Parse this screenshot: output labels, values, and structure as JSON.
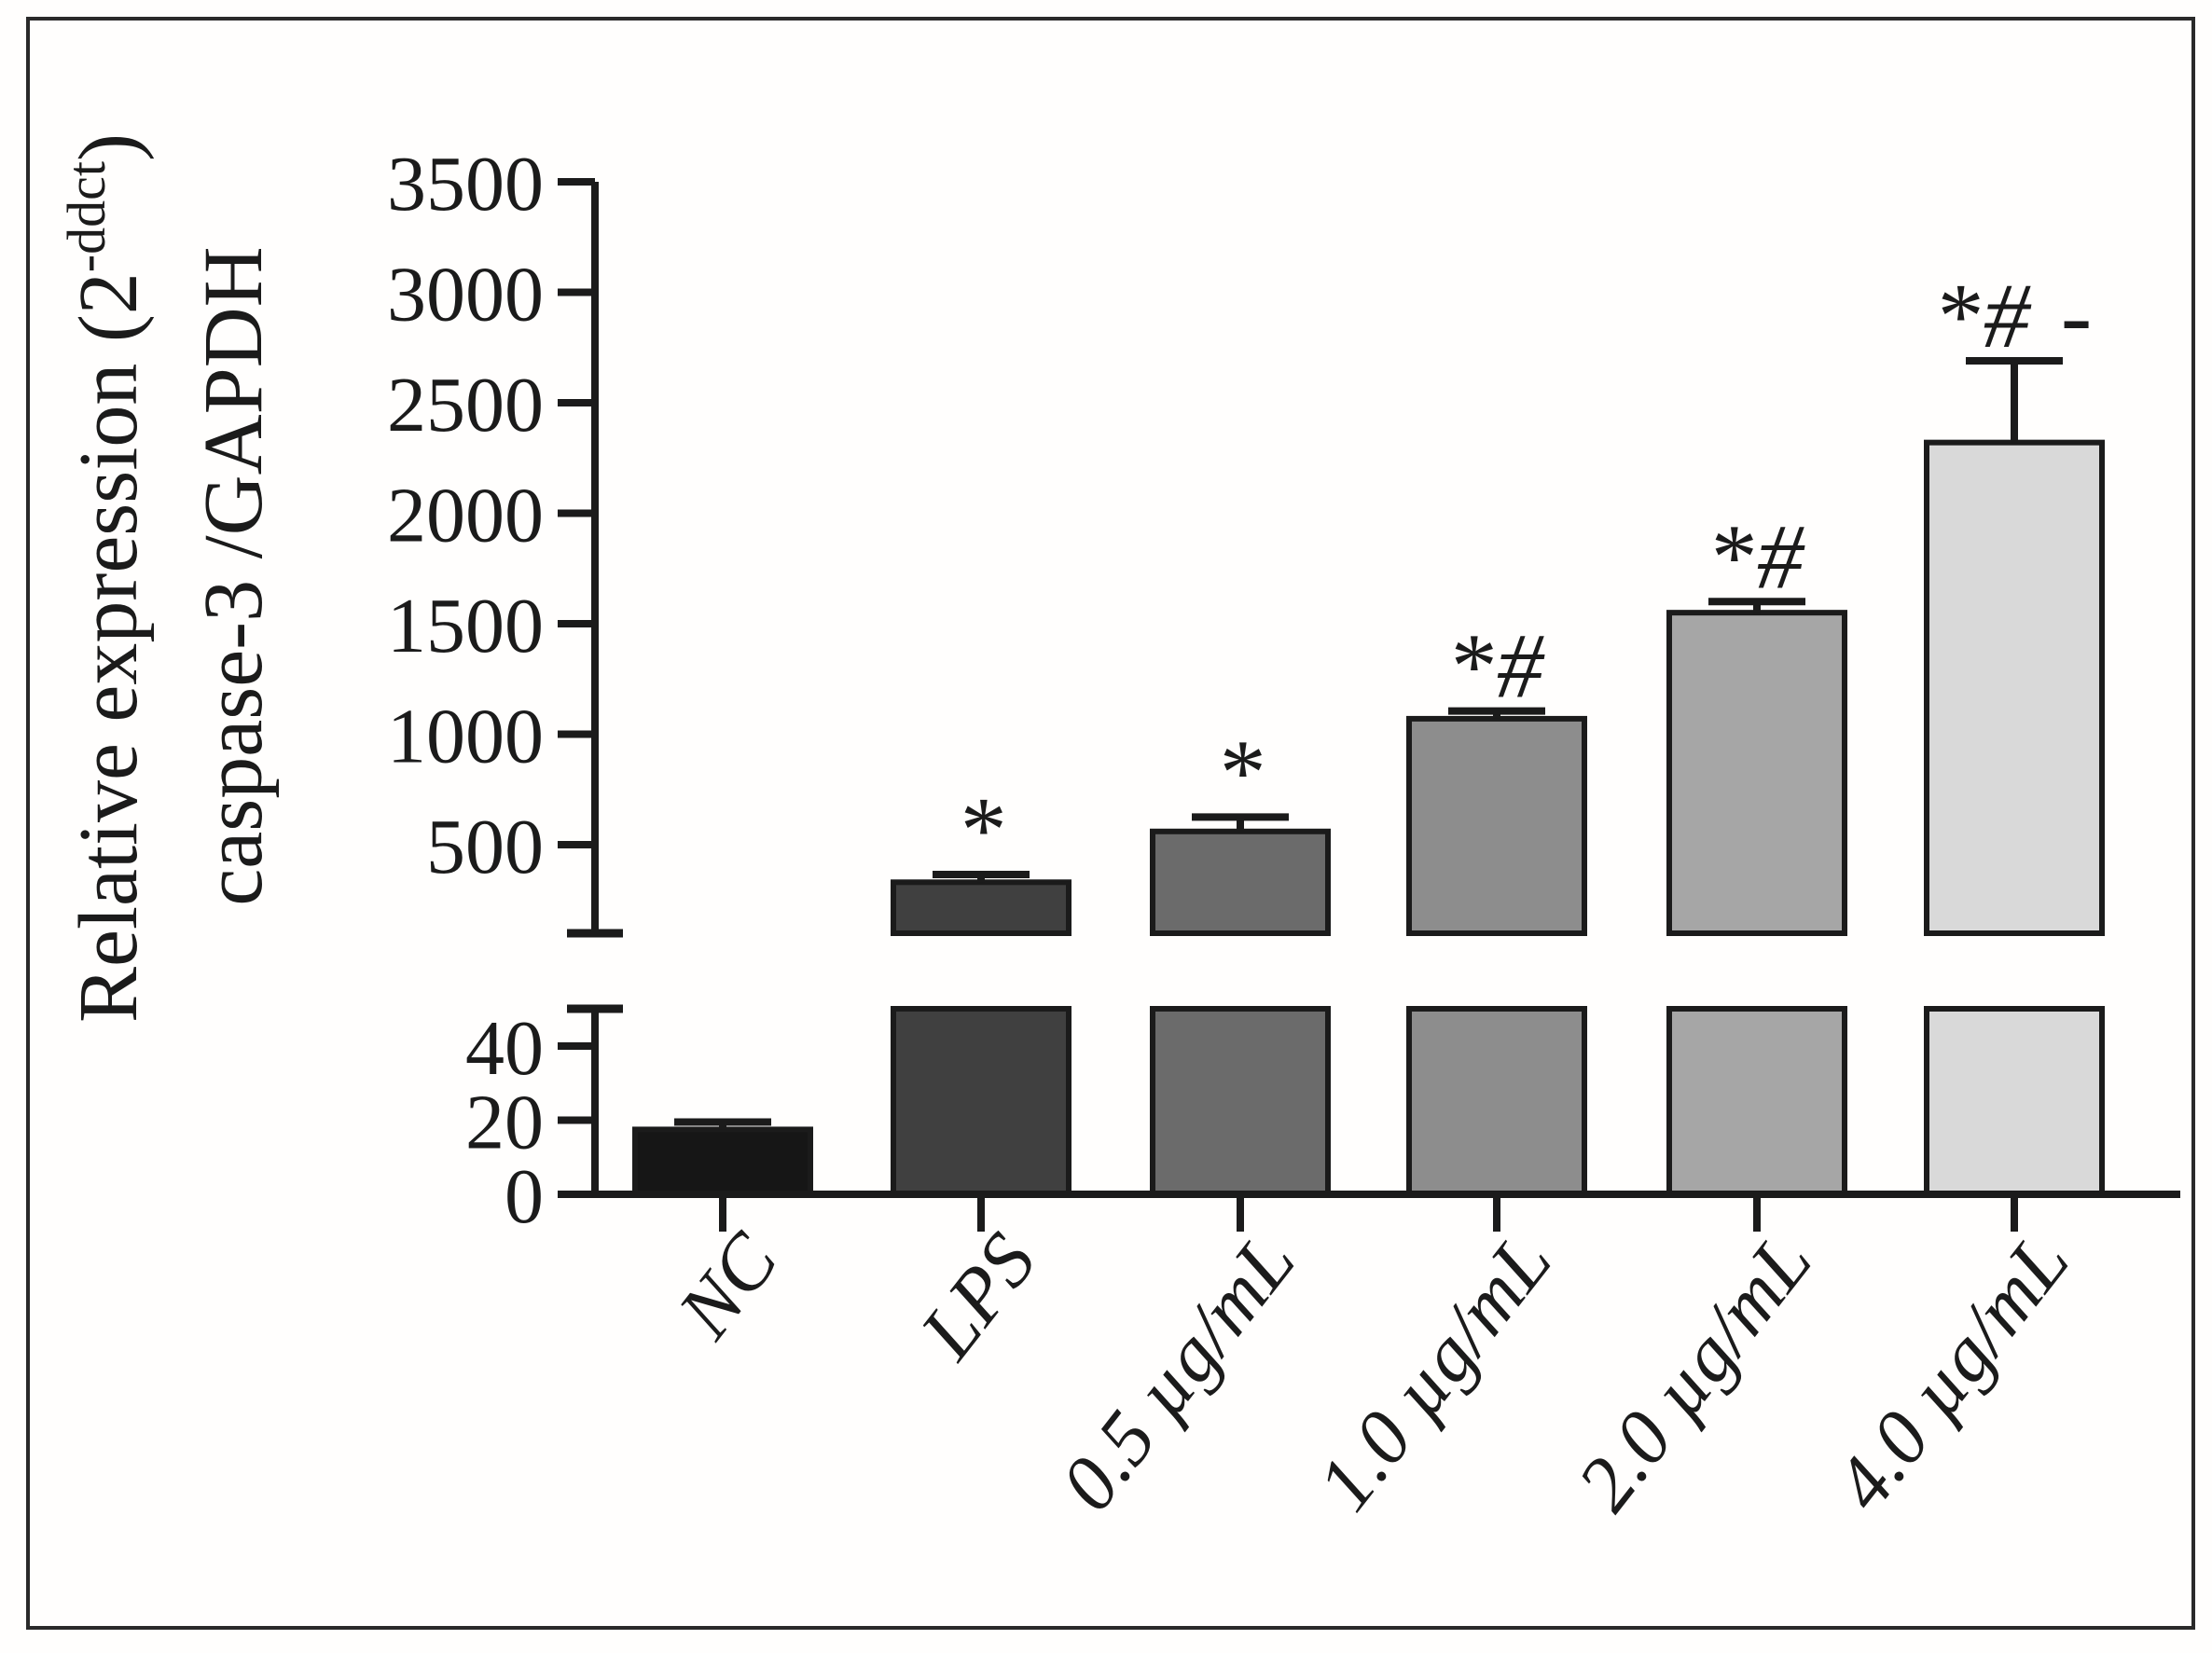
{
  "figure": {
    "kind": "scientific-bar-figure",
    "ink_color": "#1b1b1b",
    "border_color": "#2a2a2a",
    "background": "#fffefd"
  },
  "chart_data": {
    "type": "bar",
    "title": "",
    "ylabel": {
      "prefix": "Relative expression (2",
      "superscript": "-ddct",
      "suffix": ")",
      "line2": "caspase-3 /GAPDH"
    },
    "xlabel": "",
    "categories": [
      "NC",
      "LPS",
      "0.5 µg/mL",
      "1.0 µg/mL",
      "2.0 µg/mL",
      "4.0 µg/mL"
    ],
    "values": [
      17.5,
      330,
      560,
      1070,
      1550,
      2320
    ],
    "errors_plus": [
      2,
      35,
      65,
      35,
      50,
      370
    ],
    "annotations": [
      "",
      "*",
      "*",
      "*#",
      "*#",
      "*# -"
    ],
    "bar_colors": [
      "#161616",
      "#404040",
      "#6b6b6b",
      "#8d8d8d",
      "#a6a6a6",
      "#d9d9d9"
    ],
    "axis": {
      "broken": true,
      "lower_ticks": [
        0,
        20,
        40
      ],
      "lower_max": 50,
      "upper_ticks": [
        500,
        1000,
        1500,
        2000,
        2500,
        3000,
        3500
      ],
      "upper_min": 100,
      "upper_max": 3500
    },
    "grid": false,
    "legend": null
  }
}
